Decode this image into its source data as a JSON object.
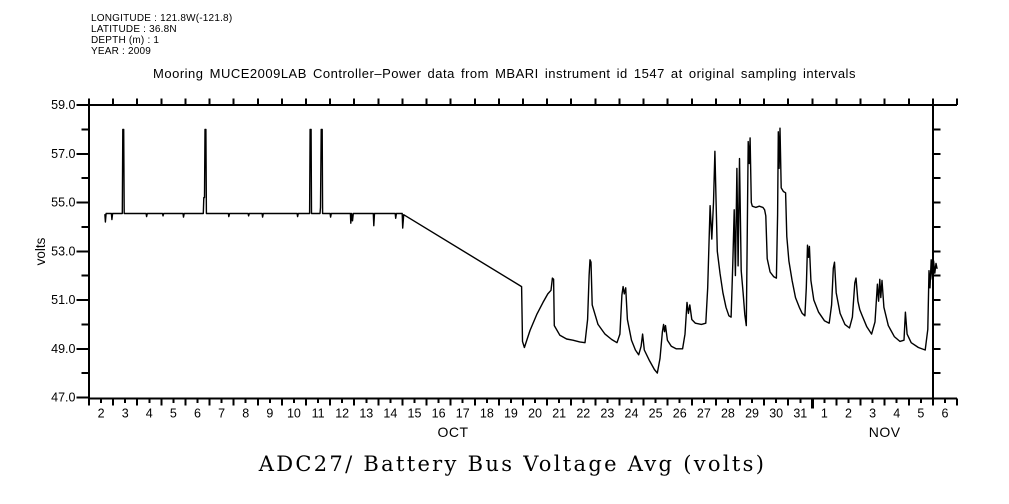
{
  "meta": {
    "lines": [
      "LONGITUDE : 121.8W(-121.8)",
      "LATITUDE : 36.8N",
      "DEPTH (m) : 1",
      "YEAR : 2009"
    ]
  },
  "bottom_title": "ADC27/ Battery Bus Voltage Avg (volts)",
  "chart_data": {
    "type": "line",
    "title": "Mooring MUCE2009LAB Controller–Power data from MBARI instrument id 1547 at original sampling intervals",
    "xlabel": "",
    "ylabel": "volts",
    "ylim": [
      47.0,
      59.0
    ],
    "y_tick_step_labeled": 2.0,
    "y_tick_labels": [
      "59.0",
      "57.0",
      "55.0",
      "53.0",
      "51.0",
      "49.0",
      "47.0"
    ],
    "x_range_days": [
      0,
      36
    ],
    "x_day_labels": [
      "2",
      "3",
      "4",
      "5",
      "6",
      "7",
      "8",
      "9",
      "10",
      "11",
      "12",
      "13",
      "14",
      "15",
      "16",
      "17",
      "18",
      "19",
      "20",
      "21",
      "22",
      "23",
      "24",
      "25",
      "26",
      "27",
      "28",
      "29",
      "30",
      "31",
      "1",
      "2",
      "3",
      "4",
      "5",
      "6"
    ],
    "x_month_labels": [
      {
        "label": "OCT",
        "u": 15.1
      },
      {
        "label": "NOV",
        "u": 33.0
      }
    ],
    "month_boundary_u": 30,
    "right_axis_u": 35,
    "grid": false,
    "legend": "none",
    "line_color": "#000000",
    "series": [
      {
        "name": "ADC27 Battery Bus Voltage Avg",
        "units": "volts",
        "x_unit": "days since Oct 2 00:00 (2009)",
        "points": [
          [
            0.66,
            54.5
          ],
          [
            0.68,
            54.2
          ],
          [
            0.71,
            54.55
          ],
          [
            0.93,
            54.55
          ],
          [
            0.95,
            54.3
          ],
          [
            0.98,
            54.55
          ],
          [
            1.38,
            54.55
          ],
          [
            1.4,
            58.0
          ],
          [
            1.44,
            58.0
          ],
          [
            1.46,
            54.55
          ],
          [
            2.37,
            54.55
          ],
          [
            2.39,
            54.42
          ],
          [
            2.42,
            54.55
          ],
          [
            3.05,
            54.55
          ],
          [
            3.07,
            54.45
          ],
          [
            3.1,
            54.55
          ],
          [
            3.9,
            54.55
          ],
          [
            3.92,
            54.4
          ],
          [
            3.95,
            54.55
          ],
          [
            4.74,
            54.55
          ],
          [
            4.76,
            55.2
          ],
          [
            4.79,
            55.2
          ],
          [
            4.81,
            58.0
          ],
          [
            4.85,
            58.0
          ],
          [
            4.87,
            54.55
          ],
          [
            5.78,
            54.55
          ],
          [
            5.8,
            54.42
          ],
          [
            5.83,
            54.55
          ],
          [
            6.6,
            54.55
          ],
          [
            6.62,
            54.45
          ],
          [
            6.65,
            54.55
          ],
          [
            7.18,
            54.55
          ],
          [
            7.2,
            54.4
          ],
          [
            7.23,
            54.55
          ],
          [
            8.63,
            54.55
          ],
          [
            8.65,
            54.42
          ],
          [
            8.68,
            54.55
          ],
          [
            9.15,
            54.55
          ],
          [
            9.17,
            58.0
          ],
          [
            9.21,
            58.0
          ],
          [
            9.23,
            54.55
          ],
          [
            9.58,
            54.55
          ],
          [
            9.6,
            54.8
          ],
          [
            9.63,
            58.0
          ],
          [
            9.67,
            58.0
          ],
          [
            9.69,
            54.55
          ],
          [
            10.0,
            54.55
          ],
          [
            10.02,
            54.4
          ],
          [
            10.05,
            54.55
          ],
          [
            10.84,
            54.55
          ],
          [
            10.86,
            54.15
          ],
          [
            10.89,
            54.55
          ],
          [
            10.93,
            54.25
          ],
          [
            10.96,
            54.55
          ],
          [
            11.79,
            54.55
          ],
          [
            11.81,
            54.05
          ],
          [
            11.84,
            54.55
          ],
          [
            12.7,
            54.55
          ],
          [
            12.72,
            54.35
          ],
          [
            12.75,
            54.55
          ],
          [
            12.99,
            54.55
          ],
          [
            13.01,
            53.95
          ],
          [
            13.05,
            54.5
          ],
          [
            17.94,
            51.55
          ],
          [
            17.98,
            49.3
          ],
          [
            18.06,
            49.05
          ],
          [
            18.29,
            49.75
          ],
          [
            18.57,
            50.4
          ],
          [
            18.83,
            50.9
          ],
          [
            19.03,
            51.25
          ],
          [
            19.16,
            51.4
          ],
          [
            19.22,
            51.9
          ],
          [
            19.27,
            51.85
          ],
          [
            19.3,
            49.95
          ],
          [
            19.53,
            49.55
          ],
          [
            19.81,
            49.4
          ],
          [
            20.07,
            49.35
          ],
          [
            20.35,
            49.28
          ],
          [
            20.57,
            49.25
          ],
          [
            20.68,
            50.2
          ],
          [
            20.74,
            52.0
          ],
          [
            20.78,
            52.65
          ],
          [
            20.82,
            52.55
          ],
          [
            20.87,
            50.8
          ],
          [
            21.11,
            50.0
          ],
          [
            21.4,
            49.6
          ],
          [
            21.68,
            49.38
          ],
          [
            21.9,
            49.25
          ],
          [
            22.02,
            49.6
          ],
          [
            22.1,
            51.2
          ],
          [
            22.15,
            51.55
          ],
          [
            22.2,
            51.25
          ],
          [
            22.26,
            51.5
          ],
          [
            22.33,
            50.2
          ],
          [
            22.5,
            49.35
          ],
          [
            22.66,
            48.95
          ],
          [
            22.8,
            48.75
          ],
          [
            22.9,
            49.1
          ],
          [
            22.96,
            49.6
          ],
          [
            23.03,
            48.95
          ],
          [
            23.25,
            48.5
          ],
          [
            23.45,
            48.15
          ],
          [
            23.57,
            48.0
          ],
          [
            23.68,
            48.6
          ],
          [
            23.78,
            49.7
          ],
          [
            23.83,
            50.0
          ],
          [
            23.87,
            49.7
          ],
          [
            23.91,
            49.95
          ],
          [
            23.99,
            49.35
          ],
          [
            24.15,
            49.1
          ],
          [
            24.35,
            49.0
          ],
          [
            24.62,
            49.0
          ],
          [
            24.72,
            49.6
          ],
          [
            24.8,
            50.9
          ],
          [
            24.86,
            50.45
          ],
          [
            24.92,
            50.8
          ],
          [
            25.0,
            50.2
          ],
          [
            25.15,
            50.05
          ],
          [
            25.4,
            50.0
          ],
          [
            25.58,
            50.05
          ],
          [
            25.66,
            51.5
          ],
          [
            25.76,
            54.87
          ],
          [
            25.83,
            53.5
          ],
          [
            25.9,
            55.0
          ],
          [
            25.96,
            57.1
          ],
          [
            26.01,
            55.0
          ],
          [
            26.06,
            53.0
          ],
          [
            26.17,
            52.1
          ],
          [
            26.29,
            51.3
          ],
          [
            26.42,
            50.7
          ],
          [
            26.54,
            50.35
          ],
          [
            26.63,
            50.3
          ],
          [
            26.7,
            52.5
          ],
          [
            26.76,
            54.7
          ],
          [
            26.81,
            52.0
          ],
          [
            26.87,
            56.4
          ],
          [
            26.92,
            52.4
          ],
          [
            26.98,
            56.8
          ],
          [
            27.05,
            52.2
          ],
          [
            27.13,
            51.3
          ],
          [
            27.2,
            50.4
          ],
          [
            27.26,
            49.95
          ],
          [
            27.3,
            53.5
          ],
          [
            27.34,
            57.5
          ],
          [
            27.38,
            56.6
          ],
          [
            27.42,
            57.65
          ],
          [
            27.47,
            55.0
          ],
          [
            27.51,
            54.85
          ],
          [
            27.65,
            54.8
          ],
          [
            27.8,
            54.85
          ],
          [
            27.95,
            54.8
          ],
          [
            28.02,
            54.7
          ],
          [
            28.07,
            54.45
          ],
          [
            28.13,
            52.7
          ],
          [
            28.25,
            52.15
          ],
          [
            28.4,
            51.95
          ],
          [
            28.51,
            51.9
          ],
          [
            28.56,
            54.5
          ],
          [
            28.59,
            57.9
          ],
          [
            28.62,
            56.4
          ],
          [
            28.66,
            58.05
          ],
          [
            28.71,
            55.6
          ],
          [
            28.8,
            55.45
          ],
          [
            28.89,
            55.4
          ],
          [
            28.94,
            53.6
          ],
          [
            29.03,
            52.6
          ],
          [
            29.16,
            51.8
          ],
          [
            29.3,
            51.1
          ],
          [
            29.46,
            50.7
          ],
          [
            29.58,
            50.45
          ],
          [
            29.69,
            50.35
          ],
          [
            29.75,
            51.5
          ],
          [
            29.8,
            53.25
          ],
          [
            29.84,
            52.75
          ],
          [
            29.88,
            53.2
          ],
          [
            29.94,
            51.8
          ],
          [
            30.06,
            51.0
          ],
          [
            30.26,
            50.5
          ],
          [
            30.5,
            50.15
          ],
          [
            30.7,
            50.05
          ],
          [
            30.8,
            50.8
          ],
          [
            30.87,
            52.3
          ],
          [
            30.92,
            52.55
          ],
          [
            30.99,
            51.3
          ],
          [
            31.15,
            50.45
          ],
          [
            31.35,
            50.0
          ],
          [
            31.54,
            49.85
          ],
          [
            31.66,
            50.3
          ],
          [
            31.76,
            51.7
          ],
          [
            31.81,
            51.9
          ],
          [
            31.89,
            50.95
          ],
          [
            31.97,
            50.6
          ],
          [
            32.07,
            50.35
          ],
          [
            32.26,
            49.9
          ],
          [
            32.46,
            49.6
          ],
          [
            32.6,
            50.1
          ],
          [
            32.7,
            51.65
          ],
          [
            32.75,
            50.95
          ],
          [
            32.8,
            51.85
          ],
          [
            32.84,
            51.1
          ],
          [
            32.89,
            51.8
          ],
          [
            32.97,
            50.7
          ],
          [
            33.15,
            49.95
          ],
          [
            33.4,
            49.5
          ],
          [
            33.63,
            49.3
          ],
          [
            33.8,
            49.35
          ],
          [
            33.86,
            50.5
          ],
          [
            33.93,
            49.6
          ],
          [
            34.1,
            49.25
          ],
          [
            34.4,
            49.05
          ],
          [
            34.68,
            48.95
          ],
          [
            34.79,
            49.8
          ],
          [
            34.84,
            52.2
          ],
          [
            34.88,
            51.5
          ],
          [
            34.93,
            52.65
          ],
          [
            34.98,
            51.85
          ],
          [
            35.03,
            52.6
          ],
          [
            35.08,
            52.1
          ],
          [
            35.13,
            52.5
          ],
          [
            35.17,
            52.3
          ]
        ]
      }
    ]
  }
}
